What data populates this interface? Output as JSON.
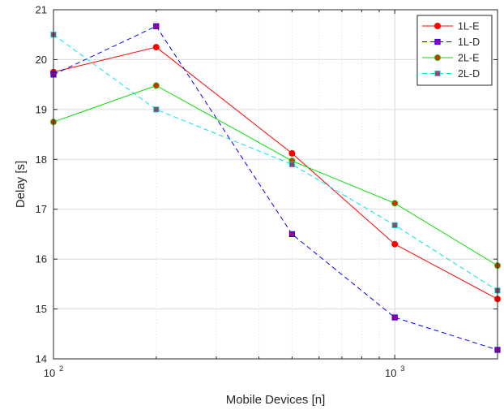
{
  "chart_data": {
    "type": "line",
    "xlabel": "Mobile Devices [n]",
    "ylabel": "Delay [s]",
    "x_scale": "log",
    "xlim": [
      100,
      2000
    ],
    "ylim": [
      14,
      21
    ],
    "x": [
      100,
      200,
      500,
      1000,
      2000
    ],
    "x_ticks": [
      {
        "value": 100,
        "base": "10",
        "exp": "2"
      },
      {
        "value": 1000,
        "base": "10",
        "exp": "3"
      }
    ],
    "y_ticks": [
      {
        "value": 14,
        "label": "14"
      },
      {
        "value": 15,
        "label": "15"
      },
      {
        "value": 16,
        "label": "16"
      },
      {
        "value": 17,
        "label": "17"
      },
      {
        "value": 18,
        "label": "18"
      },
      {
        "value": 19,
        "label": "19"
      },
      {
        "value": 20,
        "label": "20"
      },
      {
        "value": 21,
        "label": "21"
      }
    ],
    "grid": true,
    "legend_position": "top-right",
    "series": [
      {
        "name": "1L-E",
        "values": [
          19.75,
          20.25,
          18.12,
          16.3,
          15.2
        ],
        "color": "#ff0000",
        "dashed": false,
        "marker": "circle",
        "marker_fill": "#ff0000"
      },
      {
        "name": "1L-D",
        "values": [
          19.7,
          20.67,
          16.5,
          14.83,
          14.18
        ],
        "color": "#0000ff",
        "dashed": true,
        "marker": "square",
        "marker_fill": "#a0008c"
      },
      {
        "name": "2L-E",
        "values": [
          18.75,
          19.48,
          17.97,
          17.12,
          15.87
        ],
        "color": "#00dd00",
        "dashed": false,
        "marker": "circle",
        "marker_fill": "#cc3300"
      },
      {
        "name": "2L-D",
        "values": [
          20.5,
          19.0,
          17.9,
          16.68,
          15.37
        ],
        "color": "#00e5e5",
        "dashed": true,
        "marker": "square",
        "marker_fill": "#8b4a6a"
      }
    ]
  }
}
